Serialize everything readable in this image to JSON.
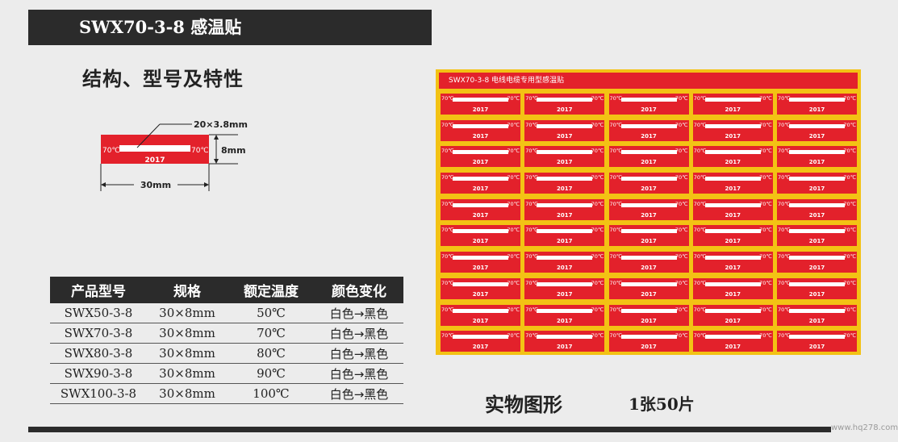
{
  "title_bar": {
    "text": "SWX70-3-8  感温贴"
  },
  "section_title": "结构、型号及特性",
  "diagram": {
    "size_label": "20×3.8mm",
    "height_label": "8mm",
    "width_label": "30mm",
    "temp_left": "70℃",
    "temp_right": "70℃",
    "year": "2017"
  },
  "spec_table": {
    "headers": [
      "产品型号",
      "规格",
      "额定温度",
      "颜色变化"
    ],
    "rows": [
      [
        "SWX50-3-8",
        "30×8mm",
        "50℃",
        "白色→黑色"
      ],
      [
        "SWX70-3-8",
        "30×8mm",
        "70℃",
        "白色→黑色"
      ],
      [
        "SWX80-3-8",
        "30×8mm",
        "80℃",
        "白色→黑色"
      ],
      [
        "SWX90-3-8",
        "30×8mm",
        "90℃",
        "白色→黑色"
      ],
      [
        "SWX100-3-8",
        "30×8mm",
        "100℃",
        "白色→黑色"
      ]
    ]
  },
  "product_panel": {
    "header": "SWX70-3-8 电线电缆专用型感温贴",
    "rows": 10,
    "cols": 5,
    "sticker": {
      "temp_left": "70℃",
      "temp_right": "70℃",
      "year": "2017"
    }
  },
  "photo_caption": "实物图形",
  "quantity": "1张50片",
  "watermark": "www.hq278.com",
  "colors": {
    "dark": "#2b2b2b",
    "red": "#e3212b",
    "yellow": "#f3c214",
    "background": "#ececec"
  }
}
